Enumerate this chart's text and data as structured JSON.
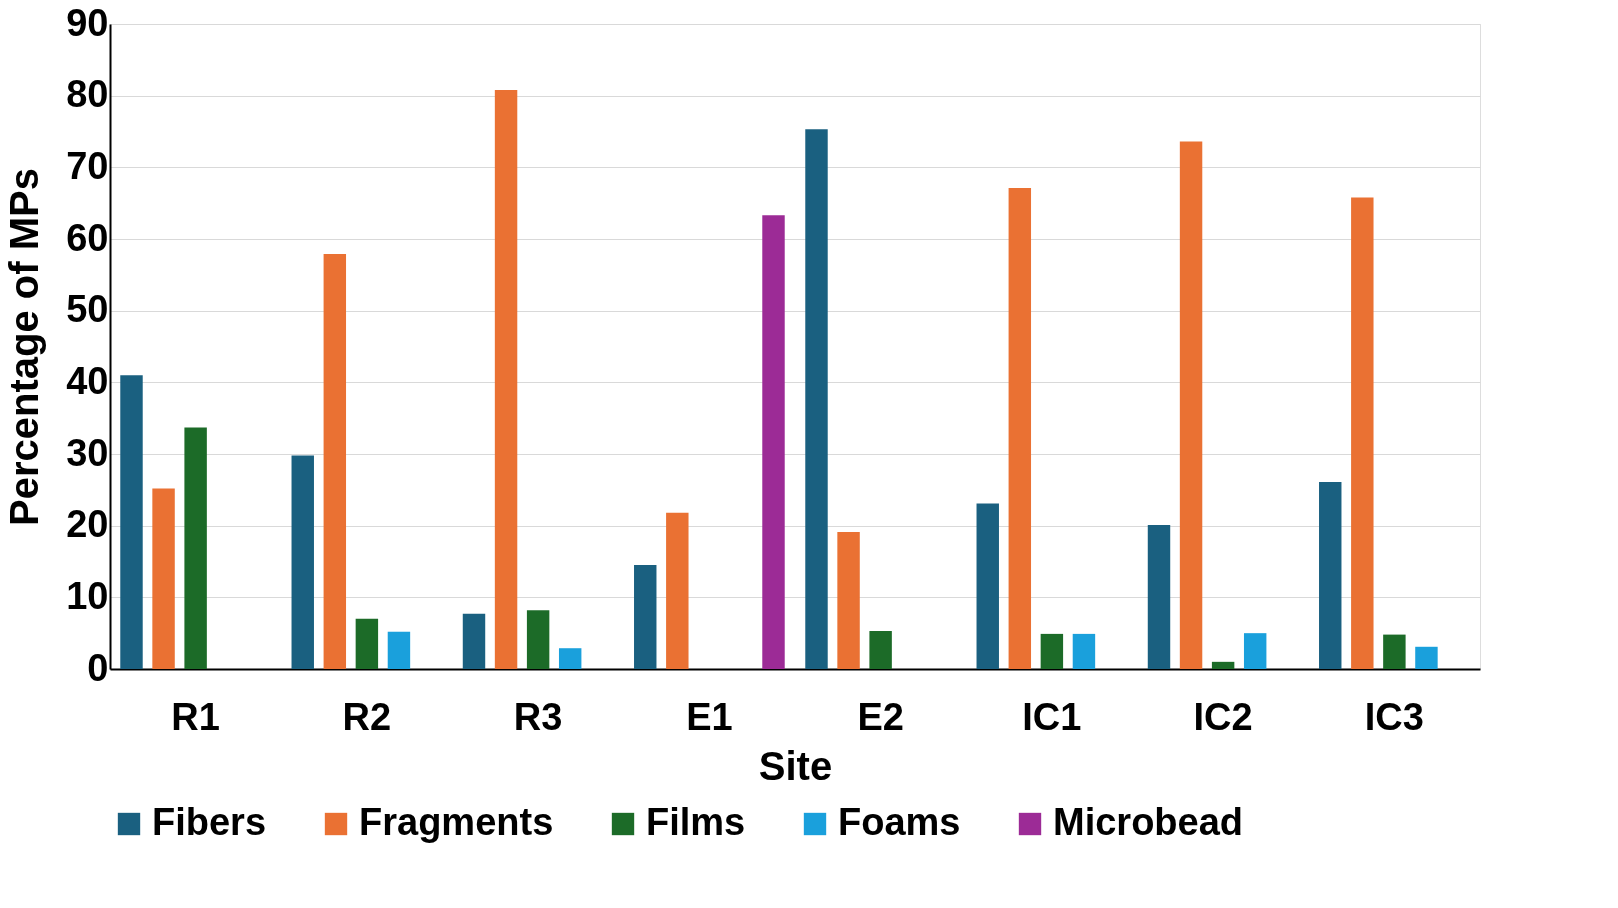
{
  "chart_data": {
    "type": "bar",
    "xlabel": "Site",
    "ylabel": "Percentage of MPs",
    "categories": [
      "R1",
      "R2",
      "R3",
      "E1",
      "E2",
      "IC1",
      "IC2",
      "IC3"
    ],
    "series": [
      {
        "name": "Fibers",
        "color": "#1a6080",
        "values": [
          41,
          29.8,
          7.7,
          14.5,
          75.3,
          23.1,
          20.1,
          26.1
        ]
      },
      {
        "name": "Fragments",
        "color": "#ea7133",
        "values": [
          25.2,
          57.9,
          80.8,
          21.8,
          19.1,
          67.1,
          73.6,
          65.8
        ]
      },
      {
        "name": "Films",
        "color": "#1c6b28",
        "values": [
          33.7,
          7,
          8.2,
          null,
          5.3,
          4.9,
          1,
          4.8
        ]
      },
      {
        "name": "Foams",
        "color": "#1aa0dc",
        "values": [
          null,
          5.2,
          2.9,
          null,
          null,
          4.9,
          5,
          3.1
        ]
      },
      {
        "name": "Microbead",
        "color": "#9c2b96",
        "values": [
          null,
          null,
          null,
          63.3,
          null,
          null,
          null,
          null
        ]
      }
    ],
    "ylim": [
      0,
      90
    ],
    "yticks": [
      0,
      10,
      20,
      30,
      40,
      50,
      60,
      70,
      80,
      90
    ],
    "grid": "y",
    "legend": "bottom"
  }
}
